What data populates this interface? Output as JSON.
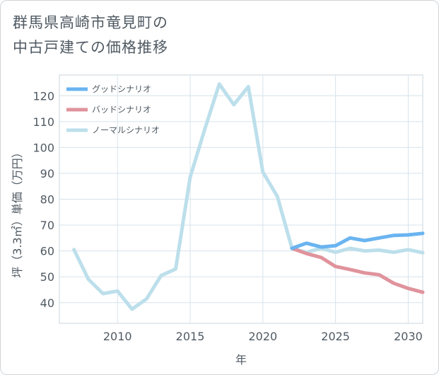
{
  "title_lines": [
    "群馬県高崎市竜見町の",
    "中古戸建ての価格推移"
  ],
  "chart_data": {
    "type": "line",
    "title": "群馬県高崎市竜見町の中古戸建ての価格推移",
    "xlabel": "年",
    "ylabel": "坪（3.3㎡）単価（万円）",
    "xlim": [
      2006,
      2031
    ],
    "ylim": [
      32,
      128
    ],
    "x_ticks": [
      2010,
      2015,
      2020,
      2025,
      2030
    ],
    "y_ticks": [
      40,
      50,
      60,
      70,
      80,
      90,
      100,
      110,
      120
    ],
    "grid": true,
    "legend_position": "top-left",
    "series": [
      {
        "name": "グッドシナリオ",
        "color": "#6ab4f0",
        "x": [
          2022,
          2023,
          2024,
          2025,
          2026,
          2027,
          2028,
          2029,
          2030,
          2031
        ],
        "y": [
          61,
          63,
          61.5,
          62,
          65,
          64,
          65,
          66,
          66.2,
          66.8
        ]
      },
      {
        "name": "バッドシナリオ",
        "color": "#e0939c",
        "x": [
          2022,
          2023,
          2024,
          2025,
          2026,
          2027,
          2028,
          2029,
          2030,
          2031
        ],
        "y": [
          61,
          59,
          57.5,
          54,
          52.8,
          51.5,
          50.8,
          47.5,
          45.5,
          44
        ]
      },
      {
        "name": "ノーマルシナリオ",
        "color": "#bcdfeb",
        "x": [
          2007,
          2008,
          2009,
          2010,
          2011,
          2012,
          2013,
          2014,
          2015,
          2016,
          2017,
          2018,
          2019,
          2020,
          2021,
          2022,
          2023,
          2024,
          2025,
          2026,
          2027,
          2028,
          2029,
          2030,
          2031
        ],
        "y": [
          60.5,
          49,
          43.5,
          44.5,
          37.5,
          41.5,
          50.5,
          53,
          88.5,
          107,
          124.5,
          116.5,
          123.5,
          90.5,
          81,
          61,
          59.5,
          61,
          59.5,
          61,
          60,
          60.3,
          59.5,
          60.5,
          59.3
        ]
      }
    ]
  }
}
